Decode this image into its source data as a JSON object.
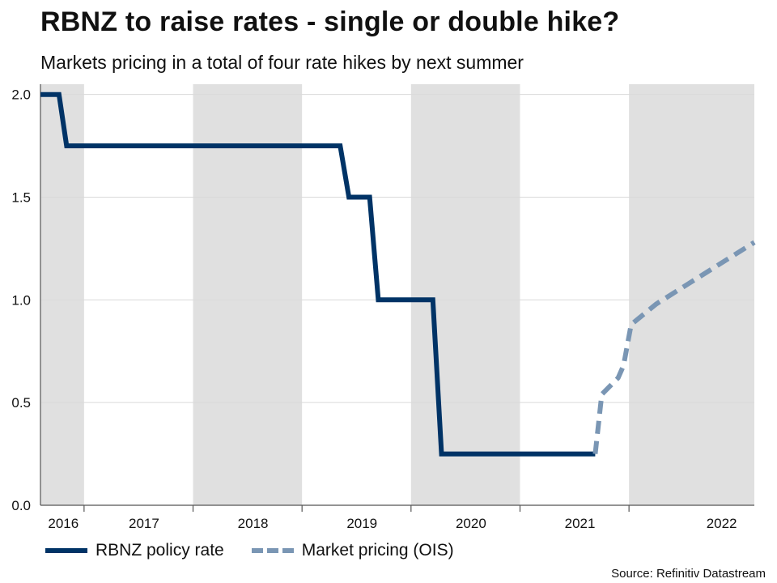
{
  "header": {
    "title": "RBNZ to raise rates - single or double hike?",
    "subtitle": "Markets pricing in a total of four rate hikes by next summer"
  },
  "source": "Source: Refinitiv Datastream",
  "colors": {
    "policy": "#003366",
    "ois": "#7a96b4",
    "shade": "#e0e0e0",
    "grid": "#d9d9d9",
    "axis": "#555555"
  },
  "chart_data": {
    "type": "line",
    "title": "RBNZ to raise rates - single or double hike?",
    "xlabel": "",
    "ylabel": "",
    "xlim": [
      2016.05,
      2022.6
    ],
    "ylim": [
      0,
      2.05
    ],
    "yticks": [
      0.0,
      0.5,
      1.0,
      1.5,
      2.0
    ],
    "ytick_labels": [
      "0.0",
      "0.5",
      "1.0",
      "1.5",
      "2.0"
    ],
    "year_labels": [
      {
        "label": "2016",
        "x": 2016.26
      },
      {
        "label": "2017",
        "x": 2017.0
      },
      {
        "label": "2018",
        "x": 2018.0
      },
      {
        "label": "2019",
        "x": 2019.0
      },
      {
        "label": "2020",
        "x": 2020.0
      },
      {
        "label": "2021",
        "x": 2021.0
      },
      {
        "label": "2022",
        "x": 2022.3
      }
    ],
    "year_boundaries": [
      2016.45,
      2017.45,
      2018.45,
      2019.45,
      2020.45,
      2021.45
    ],
    "shaded_periods": [
      [
        2016.05,
        2016.45
      ],
      [
        2017.45,
        2018.45
      ],
      [
        2019.45,
        2020.45
      ],
      [
        2021.45,
        2022.6
      ]
    ],
    "grid": true,
    "legend": "bottom-left",
    "series": [
      {
        "name": "RBNZ policy rate",
        "style": "solid",
        "x": [
          2016.05,
          2016.22,
          2016.29,
          2018.8,
          2018.88,
          2019.07,
          2019.15,
          2019.65,
          2019.73,
          2021.14
        ],
        "y": [
          2.0,
          2.0,
          1.75,
          1.75,
          1.5,
          1.5,
          1.0,
          1.0,
          0.25,
          0.25
        ]
      },
      {
        "name": "Market pricing (OIS)",
        "style": "dashed",
        "x": [
          2021.14,
          2021.2,
          2021.35,
          2021.4,
          2021.47,
          2021.7,
          2022.0,
          2022.18,
          2022.6
        ],
        "y": [
          0.25,
          0.54,
          0.62,
          0.68,
          0.88,
          0.98,
          1.08,
          1.14,
          1.28
        ]
      }
    ]
  }
}
